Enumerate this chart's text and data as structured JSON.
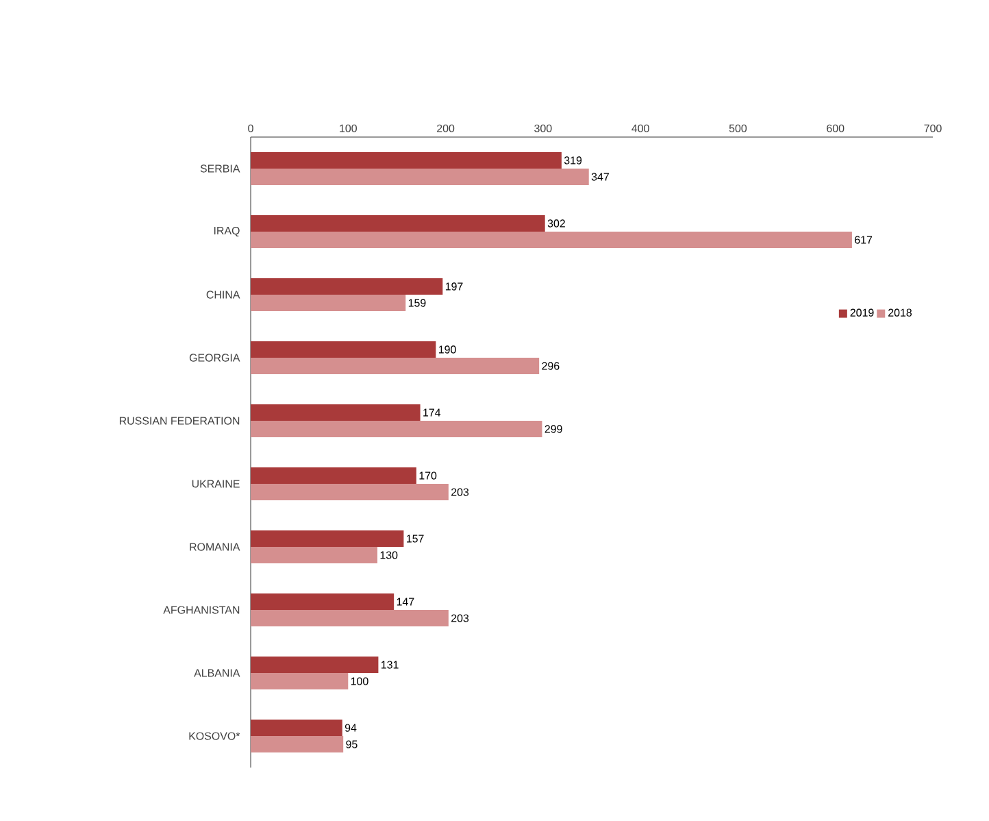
{
  "chart_data": {
    "type": "bar",
    "orientation": "horizontal",
    "categories": [
      "SERBIA",
      "IRAQ",
      "CHINA",
      "GEORGIA",
      "RUSSIAN FEDERATION",
      "UKRAINE",
      "ROMANIA",
      "AFGHANISTAN",
      "ALBANIA",
      "KOSOVO*"
    ],
    "series": [
      {
        "name": "2019",
        "color": "#a93a3a",
        "values": [
          319,
          302,
          197,
          190,
          174,
          170,
          157,
          147,
          131,
          94
        ]
      },
      {
        "name": "2018",
        "color": "#d58f8f",
        "values": [
          347,
          617,
          159,
          296,
          299,
          203,
          130,
          203,
          100,
          95
        ]
      }
    ],
    "xlim": [
      0,
      700
    ],
    "xticks": [
      0,
      100,
      200,
      300,
      400,
      500,
      600,
      700
    ],
    "data_labels": true,
    "legend": "right"
  }
}
